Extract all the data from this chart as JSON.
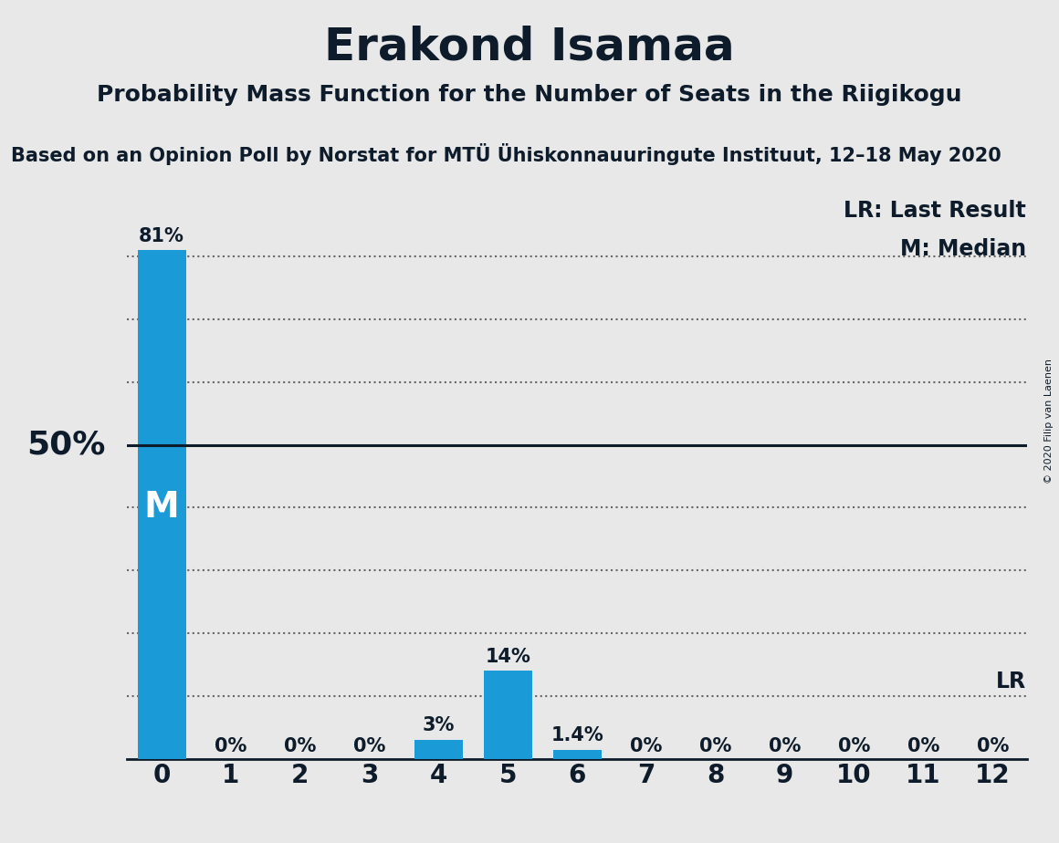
{
  "title": "Erakond Isamaa",
  "subtitle": "Probability Mass Function for the Number of Seats in the Riigikogu",
  "source": "Based on an Opinion Poll by Norstat for MTÜ Ühiskonnauuringute Instituut, 12–18 May 2020",
  "copyright": "© 2020 Filip van Laenen",
  "categories": [
    0,
    1,
    2,
    3,
    4,
    5,
    6,
    7,
    8,
    9,
    10,
    11,
    12
  ],
  "values": [
    81,
    0,
    0,
    0,
    3,
    14,
    1.4,
    0,
    0,
    0,
    0,
    0,
    0
  ],
  "bar_color": "#1a9ad6",
  "background_color": "#e8e8e8",
  "text_color": "#0d1b2a",
  "bar_labels": [
    "81%",
    "0%",
    "0%",
    "0%",
    "3%",
    "14%",
    "1.4%",
    "0%",
    "0%",
    "0%",
    "0%",
    "0%",
    "0%"
  ],
  "ylabel_50_text": "50%",
  "median_line_y": 50,
  "lr_line_y": 10,
  "median_label": "M",
  "lr_label": "LR",
  "lr_legend": "LR: Last Result",
  "m_legend": "M: Median",
  "dotted_lines": [
    80,
    70,
    60,
    40,
    30,
    20,
    10
  ],
  "ylim": [
    0,
    90
  ],
  "xlim": [
    -0.5,
    12.5
  ],
  "title_fontsize": 36,
  "subtitle_fontsize": 18,
  "source_fontsize": 15,
  "bar_label_fontsize": 15,
  "xtick_fontsize": 20
}
